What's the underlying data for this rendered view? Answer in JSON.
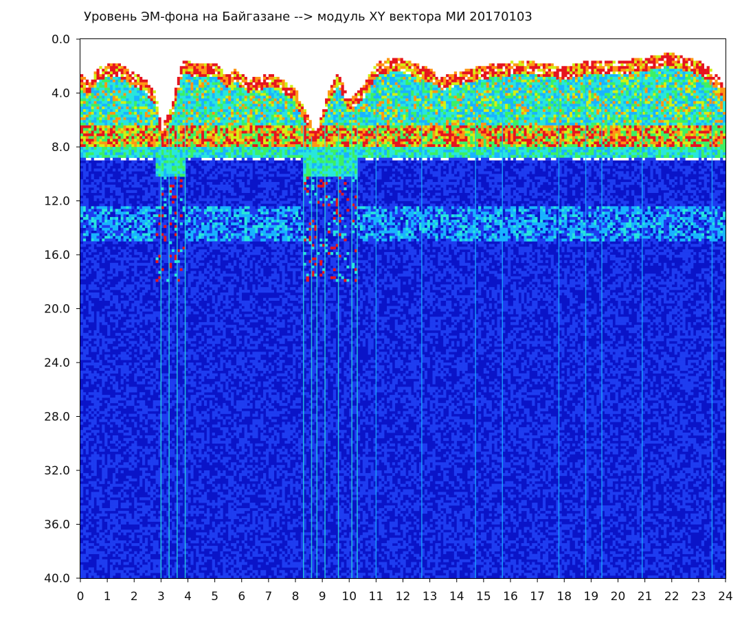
{
  "chart_data": {
    "type": "heatmap",
    "title": "Уровень ЭМ-фона на Байгазане   -->  модуль XY вектора МИ   20170103",
    "x_ticks": [
      "0",
      "1",
      "2",
      "3",
      "4",
      "5",
      "6",
      "7",
      "8",
      "9",
      "10",
      "11",
      "12",
      "13",
      "14",
      "15",
      "16",
      "17",
      "18",
      "19",
      "20",
      "21",
      "22",
      "23",
      "24"
    ],
    "y_ticks": [
      "0.0",
      "4.0",
      "8.0",
      "12.0",
      "16.0",
      "20.0",
      "24.0",
      "28.0",
      "32.0",
      "36.0",
      "40.0"
    ],
    "xlim": [
      0,
      24
    ],
    "ylim": [
      0,
      40
    ],
    "y_inverted": true,
    "grid": false,
    "colormap": [
      "#0a14c8",
      "#1e3cf0",
      "#19b4ff",
      "#28e6dc",
      "#3cf064",
      "#d2f014",
      "#ff9614",
      "#e6141e"
    ],
    "upper_boundary_points": [
      [
        0.0,
        2.5
      ],
      [
        0.3,
        3.2
      ],
      [
        0.6,
        2.2
      ],
      [
        1.0,
        1.8
      ],
      [
        1.5,
        1.9
      ],
      [
        2.0,
        2.5
      ],
      [
        2.4,
        2.9
      ],
      [
        2.8,
        4.0
      ],
      [
        3.0,
        6.5
      ],
      [
        3.4,
        5.0
      ],
      [
        3.8,
        1.5
      ],
      [
        4.2,
        1.8
      ],
      [
        5.0,
        1.7
      ],
      [
        5.5,
        2.6
      ],
      [
        5.8,
        2.2
      ],
      [
        6.2,
        3.0
      ],
      [
        6.6,
        2.8
      ],
      [
        7.0,
        2.6
      ],
      [
        7.5,
        2.9
      ],
      [
        8.0,
        3.6
      ],
      [
        8.4,
        5.5
      ],
      [
        8.8,
        7.0
      ],
      [
        9.2,
        4.0
      ],
      [
        9.6,
        2.5
      ],
      [
        10.0,
        4.5
      ],
      [
        10.5,
        3.5
      ],
      [
        11.0,
        1.8
      ],
      [
        11.5,
        1.4
      ],
      [
        12.0,
        1.5
      ],
      [
        12.5,
        1.8
      ],
      [
        13.0,
        2.2
      ],
      [
        13.5,
        2.8
      ],
      [
        14.0,
        2.4
      ],
      [
        14.5,
        2.2
      ],
      [
        15.0,
        2.0
      ],
      [
        15.5,
        1.8
      ],
      [
        16.0,
        1.7
      ],
      [
        17.0,
        1.7
      ],
      [
        18.0,
        2.0
      ],
      [
        19.0,
        1.6
      ],
      [
        20.0,
        1.6
      ],
      [
        21.0,
        1.4
      ],
      [
        21.5,
        1.2
      ],
      [
        22.0,
        1.0
      ],
      [
        22.5,
        1.4
      ],
      [
        23.0,
        1.6
      ],
      [
        23.5,
        2.2
      ],
      [
        24.0,
        3.5
      ]
    ],
    "dense_band_center": 7.2,
    "dense_band_bottom": 8.8,
    "secondary_band": [
      12.5,
      15.0
    ],
    "quiet_intervals": [
      [
        2.8,
        3.9
      ],
      [
        8.3,
        10.3
      ]
    ]
  }
}
